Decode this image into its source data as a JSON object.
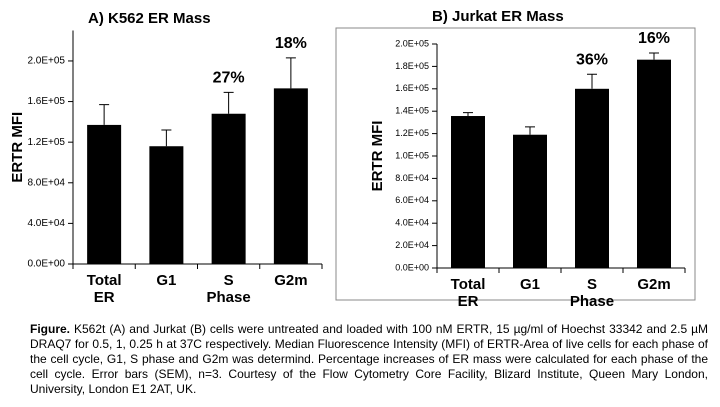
{
  "chart_data": [
    {
      "type": "bar",
      "title": "A) K562 ER Mass",
      "ylabel": "ERTR MFI",
      "categories": [
        "Total ER",
        "G1",
        "S Phase",
        "G2m"
      ],
      "values": [
        137000,
        116000,
        148000,
        173000
      ],
      "errors": [
        20000,
        16000,
        21000,
        30000
      ],
      "annotations": [
        null,
        null,
        "27%",
        "18%"
      ],
      "color": "#000000",
      "ylim": [
        0,
        230000
      ],
      "yticks": [
        {
          "value": 0,
          "label": "0.0E+00"
        },
        {
          "value": 40000,
          "label": "4.0E+04"
        },
        {
          "value": 80000,
          "label": "8.0E+04"
        },
        {
          "value": 120000,
          "label": "1.2E+05"
        },
        {
          "value": 160000,
          "label": "1.6E+05"
        },
        {
          "value": 200000,
          "label": "2.0E+05"
        }
      ],
      "grid": false
    },
    {
      "type": "bar",
      "title": "B) Jurkat ER Mass",
      "ylabel": "ERTR MFI",
      "categories": [
        "Total ER",
        "G1",
        "S Phase",
        "G2m"
      ],
      "values": [
        135700,
        119000,
        160000,
        186000
      ],
      "errors": [
        3000,
        7000,
        13000,
        6000
      ],
      "annotations": [
        null,
        null,
        "36%",
        "16%"
      ],
      "color": "#000000",
      "ylim": [
        0,
        200000
      ],
      "yticks": [
        {
          "value": 0,
          "label": "0.0E+00"
        },
        {
          "value": 20000,
          "label": "2.0E+04"
        },
        {
          "value": 40000,
          "label": "4.0E+04"
        },
        {
          "value": 60000,
          "label": "6.0E+04"
        },
        {
          "value": 80000,
          "label": "8.0E+04"
        },
        {
          "value": 100000,
          "label": "1.0E+05"
        },
        {
          "value": 120000,
          "label": "1.2E+05"
        },
        {
          "value": 140000,
          "label": "1.4E+05"
        },
        {
          "value": 160000,
          "label": "1.6E+05"
        },
        {
          "value": 180000,
          "label": "1.8E+05"
        },
        {
          "value": 200000,
          "label": "2.0E+05"
        }
      ],
      "grid": false
    }
  ],
  "caption": {
    "label": "Figure.",
    "text": "K562t (A) and Jurkat (B) cells were untreated and loaded with 100 nM ERTR, 15 µg/ml of Hoechst 33342 and 2.5 µM DRAQ7 for 0.5, 1, 0.25 h at 37C respectively. Median Fluorescence Intensity (MFI) of ERTR-Area of live cells for each phase of the cell cycle, G1, S phase and G2m was determind. Percentage increases of ER mass were calculated for each phase of the cell cycle. Error bars (SEM), n=3. Courtesy of the Flow Cytometry Core Facility, Blizard Institute, Queen Mary London, University, London E1 2AT, UK."
  }
}
